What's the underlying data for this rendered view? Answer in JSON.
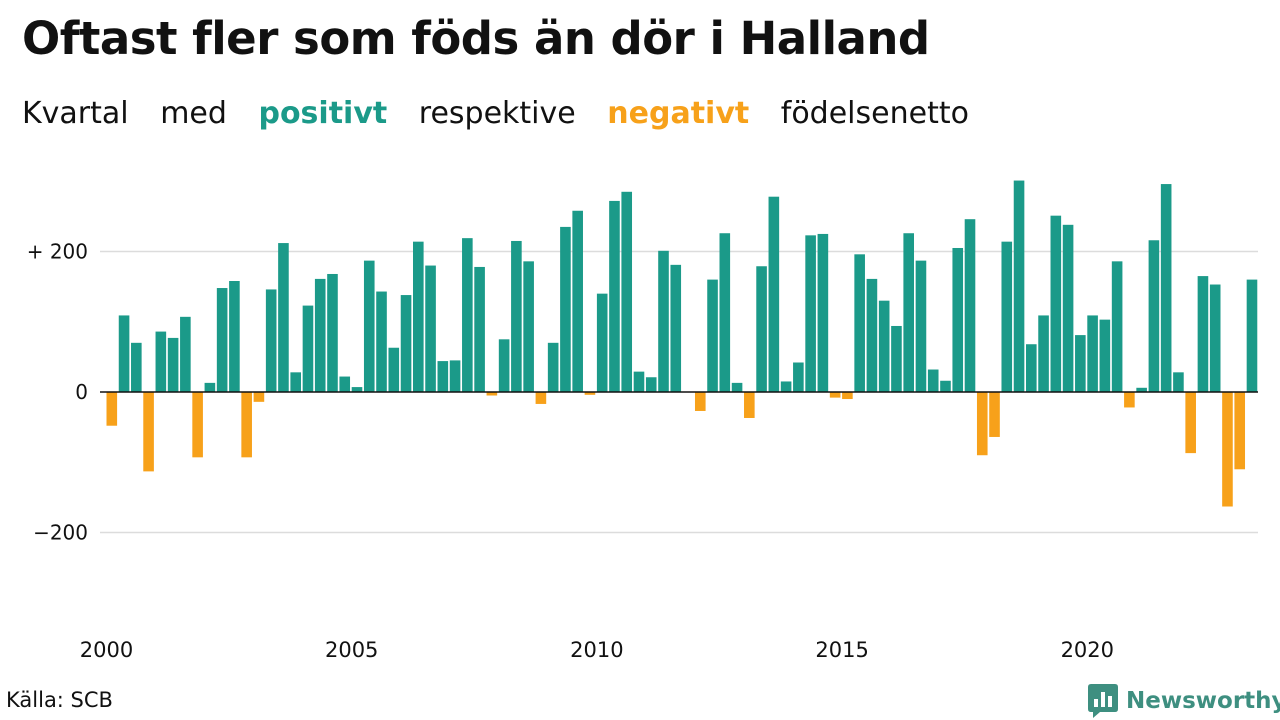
{
  "title": "Oftast fler som föds än dör i Halland",
  "subtitle": {
    "part1": "Kvartal",
    "part2": "med",
    "positive_word": "positivt",
    "part3": "respektive",
    "negative_word": "negativt",
    "part4": "födelsenetto"
  },
  "source": "Källa: SCB",
  "brand": "Newsworthy",
  "colors": {
    "positive": "#1b9a89",
    "negative": "#f7a11a",
    "grid": "#dcdcdc",
    "brand": "#3e8f80"
  },
  "chart_data": {
    "type": "bar",
    "title": "Oftast fler som föds än dör i Halland",
    "subtitle": "Kvartal med positivt respektive negativt födelsenetto",
    "x_start": "2000Q1",
    "frequency": "quarterly",
    "x_ticks": [
      "2000",
      "2005",
      "2010",
      "2015",
      "2020"
    ],
    "y_ticks": [
      {
        "value": 200,
        "label": "+ 200"
      },
      {
        "value": 0,
        "label": "0"
      },
      {
        "value": -200,
        "label": "−200"
      }
    ],
    "ylim": [
      -300,
      320
    ],
    "grid": true,
    "values": [
      -48,
      109,
      70,
      -113,
      86,
      77,
      107,
      -93,
      13,
      148,
      158,
      -93,
      -14,
      146,
      212,
      28,
      123,
      161,
      168,
      22,
      7,
      187,
      143,
      63,
      138,
      214,
      180,
      44,
      45,
      219,
      178,
      -5,
      75,
      215,
      186,
      -17,
      70,
      235,
      258,
      -4,
      140,
      272,
      285,
      29,
      21,
      201,
      181,
      0,
      -27,
      160,
      226,
      13,
      -37,
      179,
      278,
      15,
      42,
      223,
      225,
      -8,
      -10,
      196,
      161,
      130,
      94,
      226,
      187,
      32,
      16,
      205,
      246,
      -90,
      -64,
      214,
      301,
      68,
      109,
      251,
      238,
      81,
      109,
      103,
      186,
      -22,
      6,
      216,
      296,
      28,
      -87,
      165,
      153,
      -163,
      -110,
      160
    ]
  }
}
